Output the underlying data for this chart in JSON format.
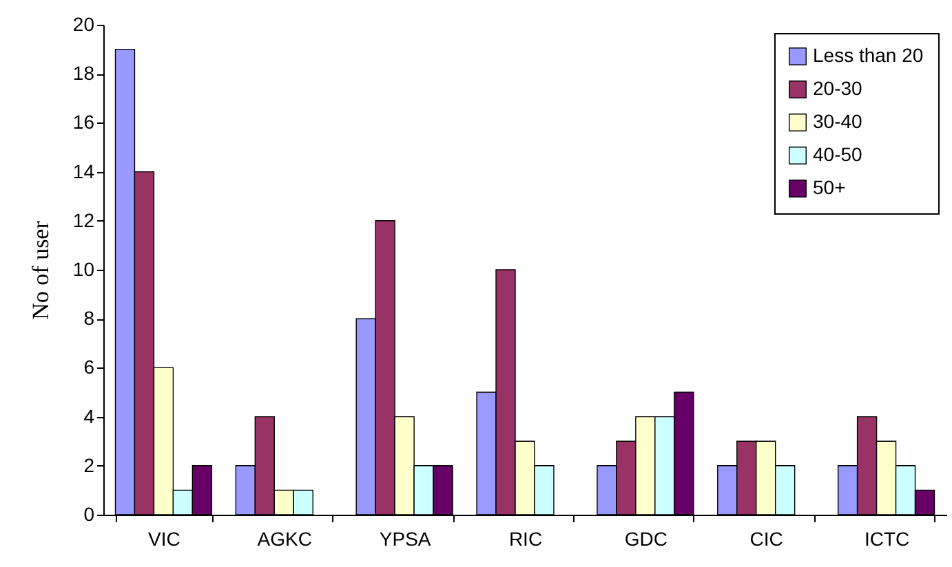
{
  "chart_data": {
    "type": "bar",
    "ylabel": "No of user",
    "categories": [
      "VIC",
      "AGKC",
      "YPSA",
      "RIC",
      "GDC",
      "CIC",
      "ICTC"
    ],
    "series": [
      {
        "name": "Less than 20",
        "color": "#9999ff",
        "values": [
          19,
          2,
          8,
          5,
          2,
          2,
          2
        ]
      },
      {
        "name": "20-30",
        "color": "#993366",
        "values": [
          14,
          4,
          12,
          10,
          3,
          3,
          4
        ]
      },
      {
        "name": "30-40",
        "color": "#ffffcc",
        "values": [
          6,
          1,
          4,
          3,
          4,
          3,
          3
        ]
      },
      {
        "name": "40-50",
        "color": "#ccffff",
        "values": [
          1,
          1,
          2,
          2,
          4,
          2,
          2
        ]
      },
      {
        "name": "50+",
        "color": "#660066",
        "values": [
          2,
          null,
          2,
          null,
          5,
          null,
          1
        ]
      }
    ],
    "ylim": [
      0,
      20
    ],
    "yticks": [
      0,
      2,
      4,
      6,
      8,
      10,
      12,
      14,
      16,
      18,
      20
    ],
    "grid": false,
    "legend": "top right"
  }
}
